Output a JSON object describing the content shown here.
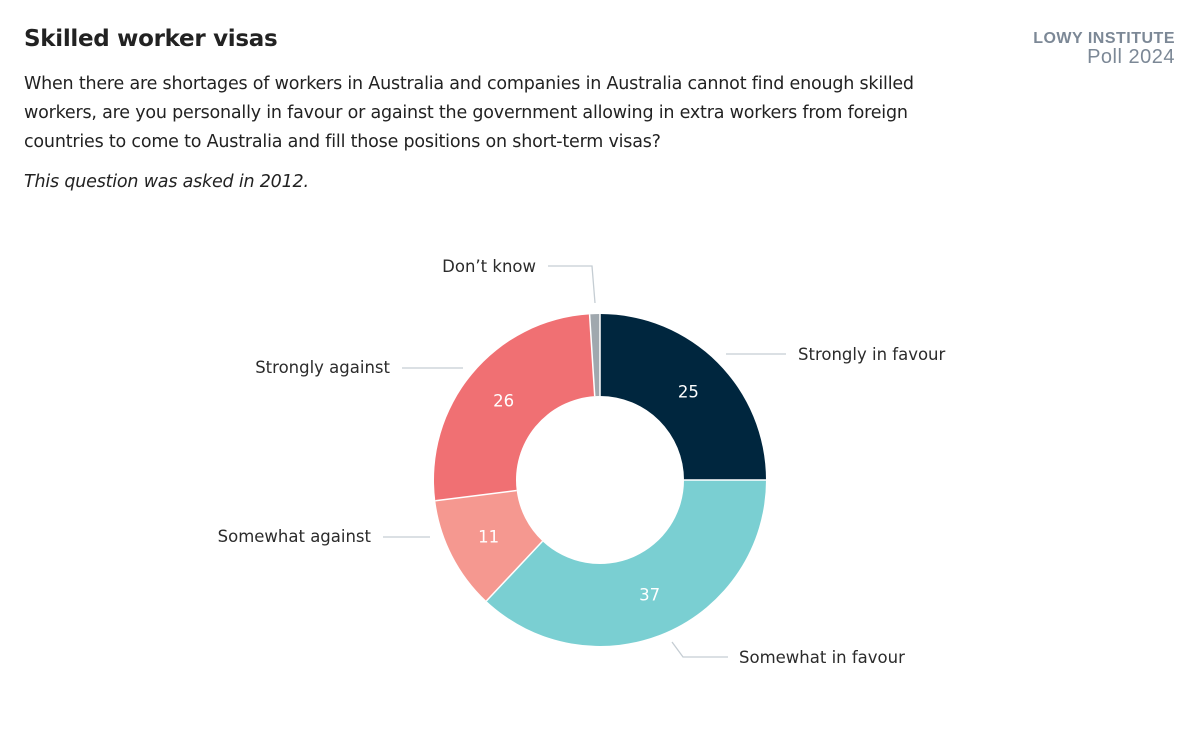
{
  "header": {
    "title": "Skilled worker visas",
    "question": "When there are shortages of workers in Australia and companies in Australia cannot find enough skilled workers, are you personally in favour or against the government allowing in extra workers from foreign countries to come to Australia and fill those positions on short-term visas?",
    "note": "This question was asked in 2012.",
    "logo_line1": "LOWY INSTITUTE",
    "logo_line2": "Poll 2024"
  },
  "chart_data": {
    "type": "pie",
    "style": "donut",
    "title": "Skilled worker visas",
    "categories": [
      "Strongly in favour",
      "Somewhat in favour",
      "Somewhat against",
      "Strongly against",
      "Don’t know"
    ],
    "values": [
      25,
      37,
      11,
      26,
      1
    ],
    "value_labels": [
      "25",
      "37",
      "11",
      "26",
      ""
    ],
    "colors": [
      "#00263e",
      "#7acfd2",
      "#f59890",
      "#f07073",
      "#a0a8ae"
    ],
    "start": "12 o'clock",
    "direction": "clockwise",
    "legend": "none (direct labels with leader lines)"
  }
}
